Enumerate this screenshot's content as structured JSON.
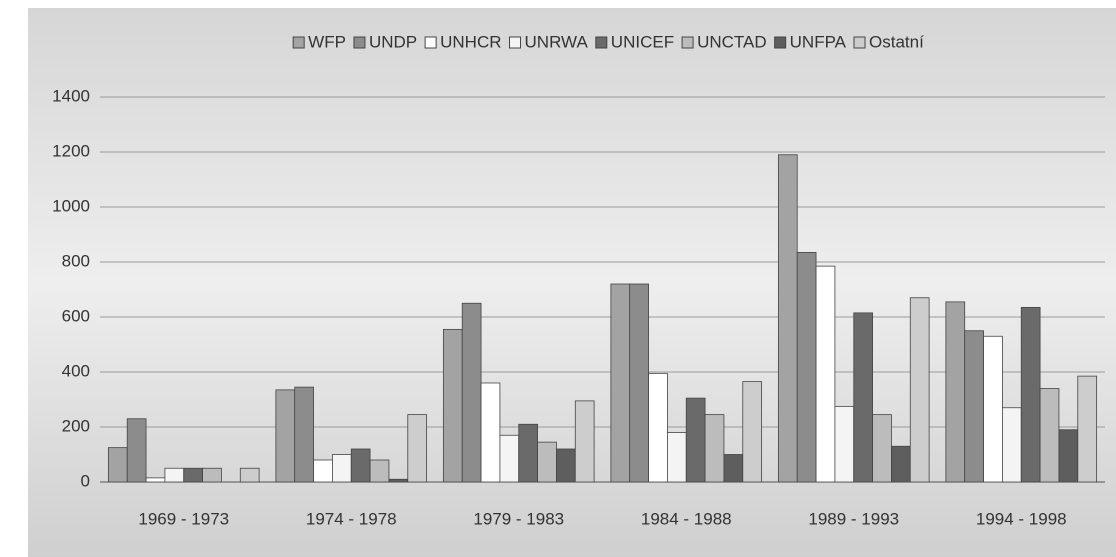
{
  "chart_data": {
    "type": "bar",
    "categories": [
      "1969 - 1973",
      "1974 - 1978",
      "1979 - 1983",
      "1984 - 1988",
      "1989 - 1993",
      "1994 - 1998"
    ],
    "series": [
      {
        "name": "WFP",
        "color": "#a3a3a3",
        "values": [
          125,
          335,
          555,
          720,
          1190,
          655
        ]
      },
      {
        "name": "UNDP",
        "color": "#8c8c8c",
        "values": [
          230,
          345,
          650,
          720,
          835,
          550
        ]
      },
      {
        "name": "UNHCR",
        "color": "#ffffff",
        "values": [
          15,
          80,
          360,
          395,
          785,
          530
        ]
      },
      {
        "name": "UNRWA",
        "color": "#f4f4f4",
        "values": [
          50,
          100,
          170,
          180,
          275,
          270
        ]
      },
      {
        "name": "UNICEF",
        "color": "#6a6a6a",
        "values": [
          50,
          120,
          210,
          305,
          615,
          635
        ]
      },
      {
        "name": "UNCTAD",
        "color": "#bcbcbc",
        "values": [
          50,
          80,
          145,
          245,
          245,
          340
        ]
      },
      {
        "name": "UNFPA",
        "color": "#5e5e5e",
        "values": [
          0,
          10,
          120,
          100,
          130,
          190
        ]
      },
      {
        "name": "Ostatní",
        "color": "#cdcdcd",
        "values": [
          50,
          245,
          295,
          365,
          670,
          385
        ]
      }
    ],
    "ylim": [
      0,
      1400
    ],
    "yticks": [
      0,
      200,
      400,
      600,
      800,
      1000,
      1200,
      1400
    ],
    "grid": true,
    "legend": "top"
  }
}
